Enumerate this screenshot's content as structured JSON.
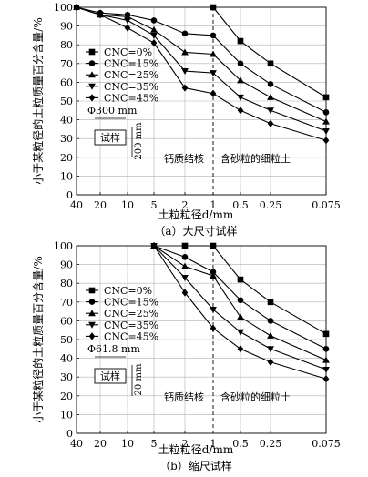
{
  "y_axis_label": "小于某粒径的土粒质量百分含量/%",
  "x_axis_label": "土粒粒径d/mm",
  "x_tick_labels": [
    "40",
    "20",
    "10",
    "5",
    "2",
    "1",
    "0.5",
    "0.25",
    "0.075"
  ],
  "region_left_label": "钙质结核",
  "region_right_label": "含砂粒的细粒土",
  "sample_label": "试样",
  "colors": {
    "line": "#000000",
    "grid": "#b0b0b0"
  },
  "chart_data": [
    {
      "type": "line",
      "caption": "（a）大尺寸试样",
      "specimen": {
        "diameter": "Φ300 mm",
        "height": "200 mm"
      },
      "x": [
        40,
        20,
        10,
        5,
        2,
        1,
        0.5,
        0.25,
        0.075
      ],
      "xscale": "log-reversed",
      "ylim": [
        0,
        100
      ],
      "yticks": [
        0,
        10,
        20,
        30,
        40,
        50,
        60,
        70,
        80,
        90,
        100
      ],
      "grid": true,
      "divider_x": 1,
      "legend_position": "left",
      "series": [
        {
          "name": "CNC=0%",
          "marker": "square",
          "values": [
            null,
            null,
            null,
            null,
            null,
            100,
            82,
            70,
            52
          ]
        },
        {
          "name": "CNC=15%",
          "marker": "circle",
          "values": [
            100,
            97,
            96,
            93,
            86,
            85,
            70,
            59,
            44
          ]
        },
        {
          "name": "CNC=25%",
          "marker": "triangle",
          "values": [
            100,
            96,
            95,
            88,
            76,
            75,
            61,
            52,
            39
          ]
        },
        {
          "name": "CNC=35%",
          "marker": "tri-down",
          "values": [
            100,
            96,
            93,
            85,
            66,
            65,
            52,
            45,
            34
          ]
        },
        {
          "name": "CNC=45%",
          "marker": "diamond",
          "values": [
            100,
            96,
            89,
            81,
            57,
            54,
            45,
            38,
            29
          ]
        }
      ]
    },
    {
      "type": "line",
      "caption": "（b）缩尺试样",
      "specimen": {
        "diameter": "Φ61.8 mm",
        "height": "20 mm"
      },
      "x": [
        40,
        20,
        10,
        5,
        2,
        1,
        0.5,
        0.25,
        0.075
      ],
      "xscale": "log-reversed",
      "ylim": [
        0,
        100
      ],
      "yticks": [
        0,
        10,
        20,
        30,
        40,
        50,
        60,
        70,
        80,
        90,
        100
      ],
      "grid": true,
      "divider_x": 1,
      "legend_position": "left",
      "series": [
        {
          "name": "CNC=0%",
          "marker": "square",
          "values": [
            null,
            null,
            null,
            null,
            100,
            100,
            82,
            70,
            53
          ]
        },
        {
          "name": "CNC=15%",
          "marker": "circle",
          "values": [
            null,
            null,
            null,
            100,
            94,
            86,
            71,
            60,
            45
          ]
        },
        {
          "name": "CNC=25%",
          "marker": "triangle",
          "values": [
            null,
            null,
            null,
            100,
            89,
            84,
            62,
            52,
            39
          ]
        },
        {
          "name": "CNC=35%",
          "marker": "tri-down",
          "values": [
            null,
            null,
            null,
            100,
            83,
            66,
            54,
            45,
            34
          ]
        },
        {
          "name": "CNC=45%",
          "marker": "diamond",
          "values": [
            null,
            null,
            null,
            100,
            75,
            56,
            45,
            38,
            29
          ]
        }
      ]
    }
  ]
}
